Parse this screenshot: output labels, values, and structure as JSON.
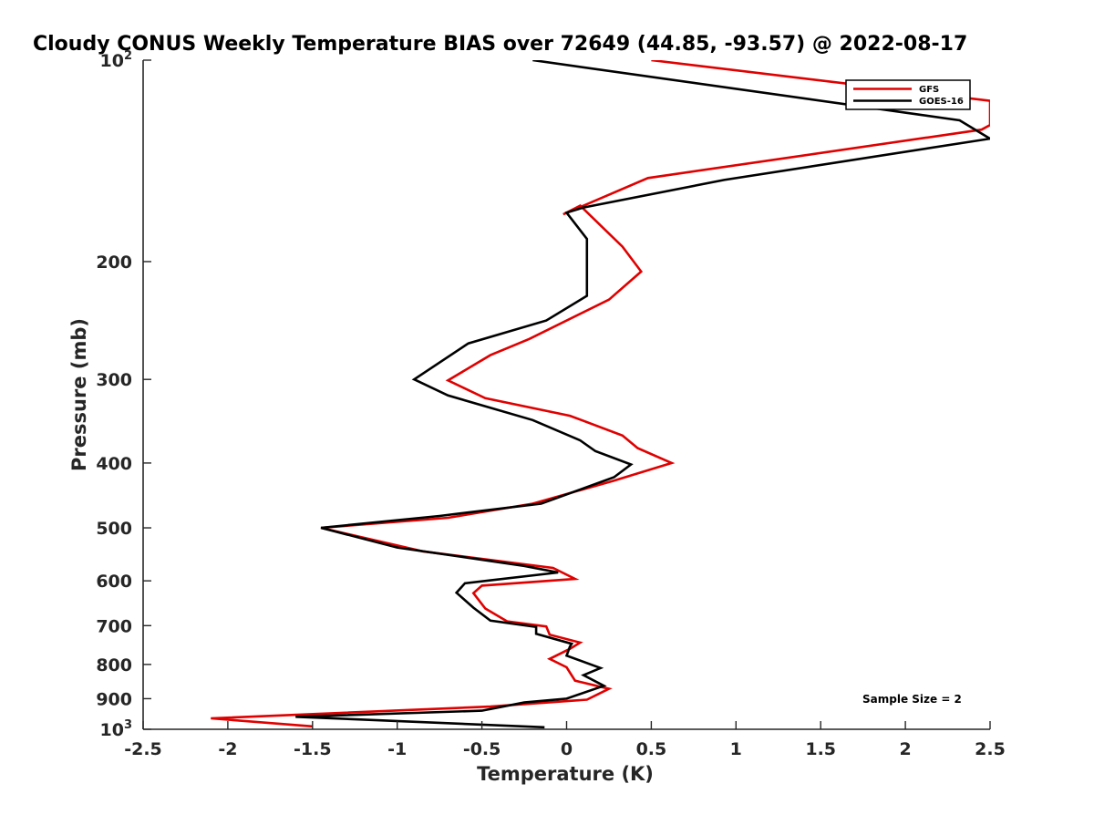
{
  "chart_data": {
    "type": "line",
    "title": "Cloudy CONUS Weekly Temperature BIAS over 72649 (44.85, -93.57) @ 2022-08-17",
    "xlabel": "Temperature (K)",
    "ylabel": "Pressure (mb)",
    "xlim": [
      -2.5,
      2.5
    ],
    "ylim": [
      100,
      1000
    ],
    "y_scale": "log",
    "y_reversed": true,
    "grid": false,
    "legend_position": "top-right",
    "x_ticks": [
      -2.5,
      -2,
      -1.5,
      -1,
      -0.5,
      0,
      0.5,
      1,
      1.5,
      2,
      2.5
    ],
    "x_tick_labels": [
      "-2.5",
      "-2",
      "-1.5",
      "-1",
      "-0.5",
      "0",
      "0.5",
      "1",
      "1.5",
      "2",
      "2.5"
    ],
    "y_ticks": [
      100,
      200,
      300,
      400,
      500,
      600,
      700,
      800,
      900,
      1000
    ],
    "y_tick_labels": [
      "10^2",
      "200",
      "300",
      "400",
      "500",
      "600",
      "700",
      "800",
      "900",
      "10^3"
    ],
    "series": [
      {
        "name": "GFS",
        "color": "#e00000",
        "points": [
          [
            0.5,
            100
          ],
          [
            2.5,
            115
          ],
          [
            2.5,
            125
          ],
          [
            2.45,
            127
          ],
          [
            0.48,
            150
          ],
          [
            -0.02,
            170
          ],
          [
            0.08,
            165
          ],
          [
            0.33,
            190
          ],
          [
            0.44,
            207
          ],
          [
            0.25,
            228
          ],
          [
            -0.22,
            261
          ],
          [
            -0.45,
            276
          ],
          [
            -0.7,
            301
          ],
          [
            -0.48,
            320
          ],
          [
            0.02,
            340
          ],
          [
            0.33,
            364
          ],
          [
            0.42,
            380
          ],
          [
            0.62,
            400
          ],
          [
            0.28,
            425
          ],
          [
            -0.2,
            460
          ],
          [
            -0.7,
            483
          ],
          [
            -1.45,
            500
          ],
          [
            -0.85,
            542
          ],
          [
            -0.08,
            574
          ],
          [
            0.05,
            596
          ],
          [
            -0.5,
            610
          ],
          [
            -0.55,
            626
          ],
          [
            -0.48,
            660
          ],
          [
            -0.35,
            690
          ],
          [
            -0.12,
            702
          ],
          [
            -0.1,
            722
          ],
          [
            0.08,
            742
          ],
          [
            0.02,
            758
          ],
          [
            -0.1,
            785
          ],
          [
            0.0,
            808
          ],
          [
            0.05,
            846
          ],
          [
            0.25,
            870
          ],
          [
            0.12,
            903
          ],
          [
            -0.45,
            925
          ],
          [
            -2.1,
            963
          ],
          [
            -1.5,
            990
          ]
        ]
      },
      {
        "name": "GOES-16",
        "color": "#000000",
        "points": [
          [
            -0.2,
            100
          ],
          [
            2.32,
            123
          ],
          [
            2.5,
            131
          ],
          [
            2.5,
            131
          ],
          [
            2.5,
            131
          ],
          [
            2.5,
            131
          ],
          [
            0.93,
            151
          ],
          [
            0.1,
            166
          ],
          [
            0.0,
            169
          ],
          [
            0.12,
            185
          ],
          [
            0.12,
            202
          ],
          [
            0.12,
            219
          ],
          [
            0.12,
            225
          ],
          [
            -0.12,
            245
          ],
          [
            -0.58,
            265
          ],
          [
            -0.9,
            300
          ],
          [
            -0.7,
            317
          ],
          [
            -0.2,
            345
          ],
          [
            0.08,
            370
          ],
          [
            0.17,
            384
          ],
          [
            0.38,
            402
          ],
          [
            0.28,
            420
          ],
          [
            -0.15,
            460
          ],
          [
            -0.75,
            480
          ],
          [
            -1.45,
            500
          ],
          [
            -1.0,
            535
          ],
          [
            -0.25,
            570
          ],
          [
            -0.05,
            583
          ],
          [
            -0.6,
            605
          ],
          [
            -0.65,
            625
          ],
          [
            -0.55,
            658
          ],
          [
            -0.45,
            688
          ],
          [
            -0.18,
            703
          ],
          [
            -0.18,
            720
          ],
          [
            0.03,
            745
          ],
          [
            0.02,
            752
          ],
          [
            0.0,
            776
          ],
          [
            0.2,
            810
          ],
          [
            0.1,
            830
          ],
          [
            0.22,
            861
          ],
          [
            0.0,
            900
          ],
          [
            -0.25,
            912
          ],
          [
            -0.5,
            938
          ],
          [
            -1.6,
            958
          ],
          [
            -0.13,
            993
          ]
        ]
      }
    ],
    "annotation": "Sample Size = 2"
  }
}
